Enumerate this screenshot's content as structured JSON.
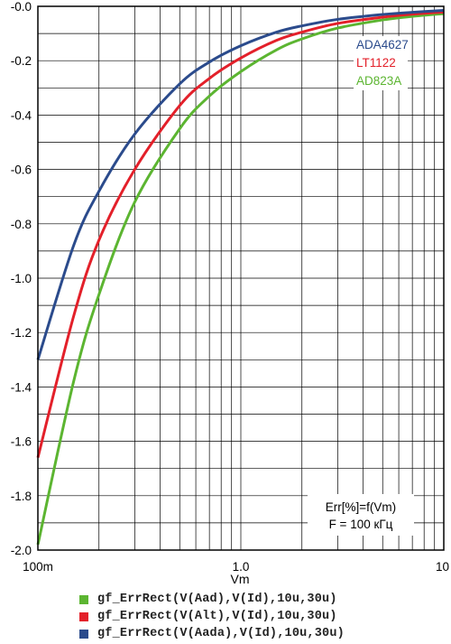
{
  "chart_data": {
    "type": "line",
    "xlabel": "Vm",
    "x_scale": "log",
    "xlim": [
      0.1,
      10
    ],
    "ylim": [
      -2.0,
      0.0
    ],
    "x_ticks": [
      {
        "value": 0.1,
        "label": "100m"
      },
      {
        "value": 1,
        "label": "1.0"
      },
      {
        "value": 10,
        "label": "10"
      }
    ],
    "y_ticks": [
      {
        "value": 0.0,
        "label": "-0.0"
      },
      {
        "value": -0.2,
        "label": "-0.2"
      },
      {
        "value": -0.4,
        "label": "-0.4"
      },
      {
        "value": -0.6,
        "label": "-0.6"
      },
      {
        "value": -0.8,
        "label": "-0.8"
      },
      {
        "value": -1.0,
        "label": "-1.0"
      },
      {
        "value": -1.2,
        "label": "-1.2"
      },
      {
        "value": -1.4,
        "label": "-1.4"
      },
      {
        "value": -1.6,
        "label": "-1.6"
      },
      {
        "value": -1.8,
        "label": "-1.8"
      },
      {
        "value": -2.0,
        "label": "-2.0"
      }
    ],
    "grid": true,
    "series": [
      {
        "name": "ADA4627",
        "color": "#2b4b8c",
        "x": [
          0.1,
          0.15,
          0.2,
          0.3,
          0.5,
          0.7,
          1,
          1.5,
          2,
          3,
          5,
          7,
          10
        ],
        "y": [
          -1.3,
          -0.88,
          -0.68,
          -0.47,
          -0.285,
          -0.205,
          -0.145,
          -0.095,
          -0.072,
          -0.048,
          -0.03,
          -0.022,
          -0.015
        ]
      },
      {
        "name": "LT1122",
        "color": "#e3202a",
        "x": [
          0.1,
          0.15,
          0.2,
          0.3,
          0.5,
          0.7,
          1,
          1.5,
          2,
          3,
          5,
          7,
          10
        ],
        "y": [
          -1.66,
          -1.14,
          -0.86,
          -0.6,
          -0.365,
          -0.265,
          -0.19,
          -0.125,
          -0.095,
          -0.063,
          -0.04,
          -0.029,
          -0.021
        ]
      },
      {
        "name": "AD823A",
        "color": "#5cb531",
        "x": [
          0.1,
          0.15,
          0.2,
          0.3,
          0.5,
          0.7,
          1,
          1.5,
          2,
          3,
          5,
          7,
          10
        ],
        "y": [
          -1.98,
          -1.38,
          -1.06,
          -0.72,
          -0.45,
          -0.33,
          -0.24,
          -0.16,
          -0.12,
          -0.08,
          -0.05,
          -0.037,
          -0.027
        ]
      }
    ],
    "annotation_lines": [
      "Err[%]=f(Vm)",
      "F = 100 кГц"
    ],
    "series_labels_position": "top-right"
  },
  "legend": [
    {
      "color": "#5cb531",
      "text": "gf_ErrRect(V(Aad),V(Id),10u,30u)"
    },
    {
      "color": "#e3202a",
      "text": "gf_ErrRect(V(Alt),V(Id),10u,30u)"
    },
    {
      "color": "#2b4b8c",
      "text": "gf_ErrRect(V(Aada),V(Id),10u,30u)"
    }
  ]
}
